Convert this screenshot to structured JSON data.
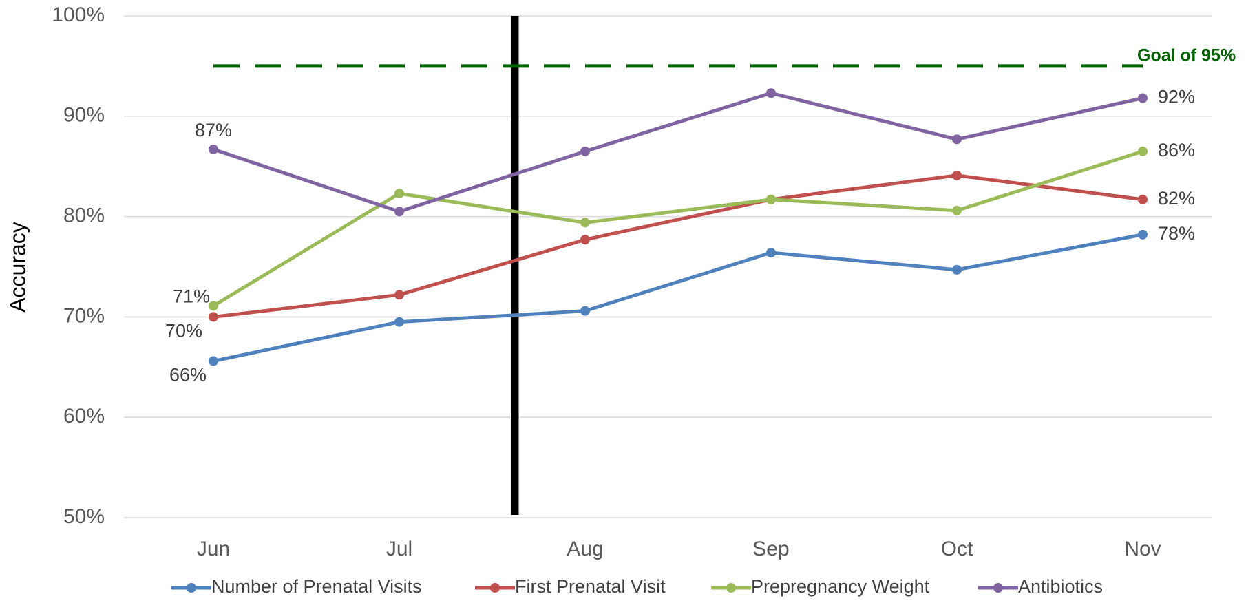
{
  "chart_data": {
    "type": "line",
    "y_label": "Accuracy",
    "categories": [
      "Jun",
      "Jul",
      "Aug",
      "Sep",
      "Oct",
      "Nov"
    ],
    "ylim": [
      50,
      100
    ],
    "yticks": [
      {
        "value": 50,
        "label": "50%"
      },
      {
        "value": 60,
        "label": "60%"
      },
      {
        "value": 70,
        "label": "70%"
      },
      {
        "value": 80,
        "label": "80%"
      },
      {
        "value": 90,
        "label": "90%"
      },
      {
        "value": 100,
        "label": "100%"
      }
    ],
    "grid": true,
    "legend": "bottom",
    "goal": {
      "value": 95,
      "label": "Goal of 95%",
      "color": "#006100"
    },
    "series": [
      {
        "name": "Number of Prenatal Visits",
        "color": "#4f81bd",
        "values": [
          65.6,
          69.5,
          70.6,
          76.4,
          74.7,
          78.2
        ],
        "value_labels": [
          "66%",
          null,
          null,
          null,
          null,
          "78%"
        ]
      },
      {
        "name": "First Prenatal Visit",
        "color": "#c0504d",
        "values": [
          70.0,
          72.2,
          77.7,
          81.7,
          84.1,
          81.7
        ],
        "value_labels": [
          "70%",
          null,
          null,
          null,
          null,
          "82%"
        ]
      },
      {
        "name": "Prepregnancy Weight",
        "color": "#9bbb59",
        "values": [
          71.1,
          82.3,
          79.4,
          81.7,
          80.6,
          86.5
        ],
        "value_labels": [
          "71%",
          null,
          null,
          null,
          null,
          "86%"
        ]
      },
      {
        "name": "Antibiotics",
        "color": "#8064a2",
        "values": [
          86.7,
          80.5,
          86.5,
          92.3,
          87.7,
          91.8
        ],
        "value_labels": [
          "87%",
          null,
          null,
          null,
          null,
          "92%"
        ]
      }
    ]
  }
}
